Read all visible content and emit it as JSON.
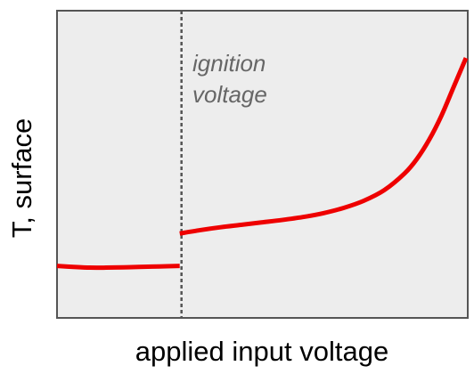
{
  "chart_data": {
    "type": "line",
    "title": "",
    "xlabel": "applied input voltage",
    "ylabel": "T, surface",
    "xlim": [
      0,
      100
    ],
    "ylim": [
      0,
      100
    ],
    "grid": false,
    "legend": "none",
    "annotations": [
      {
        "type": "vline",
        "x": 30,
        "lines": [
          "ignition",
          "voltage"
        ]
      }
    ],
    "series": [
      {
        "segment": "pre-ignition",
        "color": "#ee0000",
        "x": [
          0,
          4,
          8,
          12,
          16,
          20,
          25,
          30
        ],
        "y": [
          10.5,
          10.1,
          9.8,
          9.8,
          9.9,
          10.1,
          10.3,
          10.5
        ]
      },
      {
        "segment": "post-ignition",
        "color": "#ee0000",
        "x": [
          30,
          35,
          40,
          45,
          50,
          55,
          60,
          65,
          70,
          75,
          80,
          85,
          88,
          91,
          94,
          97,
          100
        ],
        "y": [
          24,
          25.4,
          26.6,
          27.6,
          28.6,
          29.6,
          30.8,
          32.4,
          34.6,
          37.6,
          42,
          49,
          55,
          63,
          73,
          85,
          97
        ]
      }
    ]
  },
  "colors": {
    "plot_background": "#ededed",
    "frame": "#555555",
    "line": "#ee0000",
    "marker_line": "#555555",
    "annotation_text": "#666666"
  }
}
